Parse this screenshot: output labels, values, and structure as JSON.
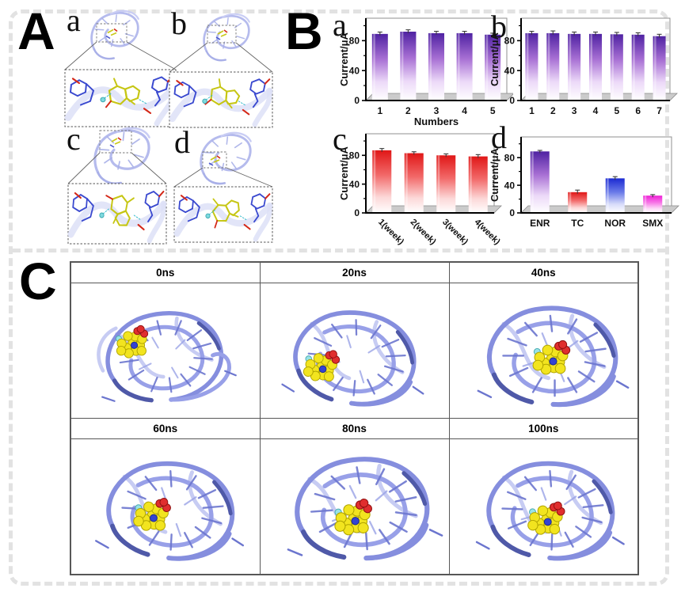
{
  "panel_a": {
    "label": "A",
    "sublabels": [
      "a",
      "b",
      "c",
      "d"
    ]
  },
  "panel_b": {
    "label": "B",
    "sublabels": [
      "a",
      "b",
      "c",
      "d"
    ]
  },
  "panel_c": {
    "label": "C",
    "frames": [
      "0ns",
      "20ns",
      "40ns",
      "60ns",
      "80ns",
      "100ns"
    ]
  },
  "chart_data": [
    {
      "type": "bar",
      "panel_label": "a",
      "title": "",
      "ylabel": "Current/μA",
      "xlabel": "Numbers",
      "categories": [
        "1",
        "2",
        "3",
        "4",
        "5"
      ],
      "values": [
        89,
        92,
        90,
        90,
        88
      ],
      "errors": [
        2.5,
        2.5,
        2.5,
        2.5,
        2
      ],
      "ylim": [
        0,
        110
      ],
      "yticks_major": [
        0,
        40,
        80
      ],
      "yticks_minor": [
        20,
        60,
        100
      ],
      "bar_gradient": [
        "purple",
        "purple",
        "purple",
        "purple",
        "purple"
      ],
      "xtick_rotation": 0
    },
    {
      "type": "bar",
      "panel_label": "b",
      "title": "",
      "ylabel": "Current/μA",
      "xlabel": "",
      "categories": [
        "1",
        "2",
        "3",
        "4",
        "5",
        "6",
        "7"
      ],
      "values": [
        90,
        90,
        89,
        89,
        88.5,
        88,
        86
      ],
      "errors": [
        2.5,
        3,
        2.5,
        2.5,
        2.5,
        2.5,
        2.5
      ],
      "ylim": [
        0,
        110
      ],
      "yticks_major": [
        0,
        40,
        80
      ],
      "yticks_minor": [
        20,
        60,
        100
      ],
      "bar_gradient": [
        "purple",
        "purple",
        "purple",
        "purple",
        "purple",
        "purple",
        "purple"
      ],
      "xtick_rotation": 0
    },
    {
      "type": "bar",
      "panel_label": "c",
      "title": "",
      "ylabel": "Current/μA",
      "xlabel": "",
      "categories": [
        "1(week)",
        "2(week)",
        "3(week)",
        "4(week)"
      ],
      "values": [
        87,
        83,
        80,
        78.5
      ],
      "errors": [
        2.5,
        2,
        2,
        2.5
      ],
      "ylim": [
        0,
        110
      ],
      "yticks_major": [
        0,
        40,
        80
      ],
      "yticks_minor": [
        20,
        60,
        100
      ],
      "bar_gradient": [
        "red",
        "red",
        "red",
        "red"
      ],
      "xtick_rotation": 45
    },
    {
      "type": "bar",
      "panel_label": "d",
      "title": "",
      "ylabel": "Current/μA",
      "xlabel": "",
      "categories": [
        "ENR",
        "TC",
        "NOR",
        "SMX"
      ],
      "values": [
        89,
        30,
        50,
        25
      ],
      "errors": [
        1.5,
        3,
        2.5,
        1.5
      ],
      "ylim": [
        0,
        110
      ],
      "yticks_major": [
        0,
        40,
        80
      ],
      "yticks_minor": [
        20,
        60,
        100
      ],
      "bar_gradient": [
        "purple",
        "red",
        "blue",
        "magenta"
      ],
      "xtick_rotation": 0
    }
  ],
  "colors": {
    "bar_gradients": {
      "purple": {
        "stops": [
          "#4f22a2",
          "#a870d4",
          "#ecd9f8",
          "#ffffff"
        ],
        "offsets": [
          0,
          0.38,
          0.72,
          1
        ]
      },
      "red": {
        "stops": [
          "#e01717",
          "#f26a6a",
          "#fcd8d8",
          "#ffffff"
        ],
        "offsets": [
          0,
          0.4,
          0.75,
          1
        ]
      },
      "blue": {
        "stops": [
          "#1b2ad2",
          "#6a7ae8",
          "#d8dcfa",
          "#ffffff"
        ],
        "offsets": [
          0,
          0.4,
          0.75,
          1
        ]
      },
      "magenta": {
        "stops": [
          "#ee1fd6",
          "#f775e6",
          "#fdd8f8",
          "#ffffff"
        ],
        "offsets": [
          0,
          0.4,
          0.75,
          1
        ]
      }
    },
    "floor": "#cbcbcb",
    "axis": "#000000",
    "ribbon_main": "#858ede",
    "ribbon_mid": "#98a0e8",
    "ribbon_light": "#c7ccf3",
    "ribbon_dark": "#4f59a8",
    "rung": "#6b75ce",
    "ligand_yellow": "#f2e41f",
    "ligand_yellow_edge": "#b0a400",
    "ligand_red": "#e02e2e",
    "ligand_blue": "#3343d2",
    "ligand_cyan": "#98e2e6",
    "stick_yellow": "#c6c614",
    "stick_blue": "#3a49cf",
    "stick_red": "#d42818",
    "border_dash": "#e2e2e2",
    "table_border": "#575757"
  }
}
